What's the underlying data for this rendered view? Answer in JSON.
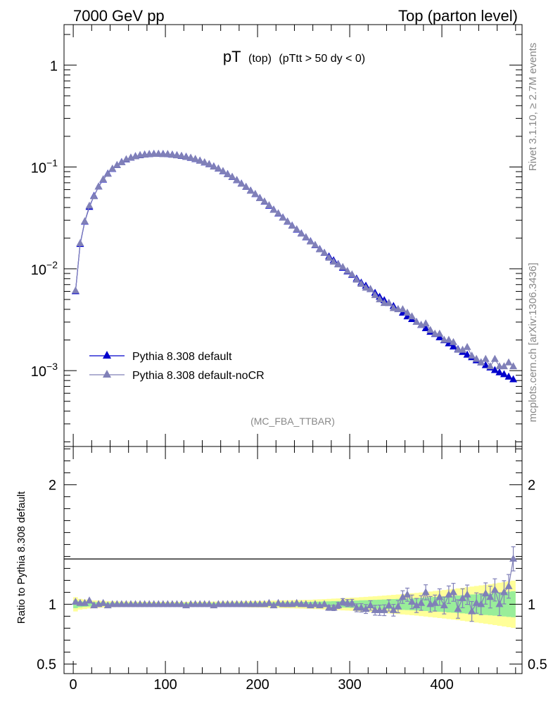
{
  "header": {
    "left": "7000 GeV pp",
    "right": "Top (parton level)"
  },
  "side_labels": {
    "rivet": "Rivet 3.1.10, ≥ 2.7M events",
    "mcplots": "mcplots.cern.ch [arXiv:1306.3436]"
  },
  "colors": {
    "default": "#0000cc",
    "nocr": "#8080b8",
    "band_green": "#99ee99",
    "band_yellow": "#ffff99"
  },
  "chart_data": [
    {
      "type": "line",
      "title_main": "pT",
      "title_sub1": "(top)",
      "title_sub2": "(pTtt > 50 dy < 0)",
      "analysis_tag": "(MC_FBA_TTBAR)",
      "yscale": "log",
      "xlim": [
        -10,
        487
      ],
      "ylim": [
        0.00018,
        2.5
      ],
      "yticks": [
        {
          "base": "1",
          "exp": ""
        },
        {
          "base": "10",
          "exp": "−1"
        },
        {
          "base": "10",
          "exp": "−2"
        },
        {
          "base": "10",
          "exp": "−3"
        }
      ],
      "ytick_values": [
        1,
        0.1,
        0.01,
        0.001
      ],
      "legend_position": "lower-left",
      "x": [
        2.5,
        7.5,
        12.5,
        17.5,
        22.5,
        27.5,
        32.5,
        37.5,
        42.5,
        47.5,
        52.5,
        57.5,
        62.5,
        67.5,
        72.5,
        77.5,
        82.5,
        87.5,
        92.5,
        97.5,
        102.5,
        107.5,
        112.5,
        117.5,
        122.5,
        127.5,
        132.5,
        137.5,
        142.5,
        147.5,
        152.5,
        157.5,
        162.5,
        167.5,
        172.5,
        177.5,
        182.5,
        187.5,
        192.5,
        197.5,
        202.5,
        207.5,
        212.5,
        217.5,
        222.5,
        227.5,
        232.5,
        237.5,
        242.5,
        247.5,
        252.5,
        257.5,
        262.5,
        267.5,
        272.5,
        277.5,
        282.5,
        287.5,
        292.5,
        297.5,
        302.5,
        307.5,
        312.5,
        317.5,
        322.5,
        327.5,
        332.5,
        337.5,
        342.5,
        347.5,
        352.5,
        357.5,
        362.5,
        367.5,
        372.5,
        377.5,
        382.5,
        387.5,
        392.5,
        397.5,
        402.5,
        407.5,
        412.5,
        417.5,
        422.5,
        427.5,
        432.5,
        437.5,
        442.5,
        447.5,
        452.5,
        457.5,
        462.5,
        467.5,
        472.5,
        477.5
      ],
      "series": [
        {
          "name": "Pythia 8.308 default",
          "marker": "filled-triangle",
          "values": [
            0.006,
            0.0175,
            0.029,
            0.0405,
            0.052,
            0.064,
            0.075,
            0.086,
            0.0955,
            0.104,
            0.1115,
            0.118,
            0.123,
            0.127,
            0.13,
            0.132,
            0.1333,
            0.134,
            0.1342,
            0.1338,
            0.133,
            0.1318,
            0.13,
            0.128,
            0.1255,
            0.1225,
            0.119,
            0.115,
            0.1105,
            0.106,
            0.101,
            0.096,
            0.0905,
            0.085,
            0.0795,
            0.074,
            0.0685,
            0.0635,
            0.0585,
            0.054,
            0.0495,
            0.0455,
            0.0415,
            0.038,
            0.0348,
            0.0318,
            0.029,
            0.0265,
            0.0242,
            0.0222,
            0.0203,
            0.0186,
            0.017,
            0.0156,
            0.0143,
            0.0132,
            0.0121,
            0.0111,
            0.0102,
            0.0094,
            0.0087,
            0.008,
            0.0073,
            0.0068,
            0.0063,
            0.0058,
            0.0053,
            0.0049,
            0.0046,
            0.0043,
            0.004,
            0.0037,
            0.0034,
            0.0032,
            0.003,
            0.0028,
            0.0026,
            0.0024,
            0.00228,
            0.00212,
            0.00198,
            0.00185,
            0.00172,
            0.00162,
            0.00152,
            0.00143,
            0.00135,
            0.00126,
            0.0012,
            0.00113,
            0.00107,
            0.00101,
            0.00096,
            0.00092,
            0.00087,
            0.00082
          ],
          "ratio": [
            1,
            1,
            1,
            1,
            1,
            1,
            1,
            1,
            1,
            1,
            1,
            1,
            1,
            1,
            1,
            1,
            1,
            1,
            1,
            1,
            1,
            1,
            1,
            1,
            1,
            1,
            1,
            1,
            1,
            1,
            1,
            1,
            1,
            1,
            1,
            1,
            1,
            1,
            1,
            1,
            1,
            1,
            1,
            1,
            1,
            1,
            1,
            1,
            1,
            1,
            1,
            1,
            1,
            1,
            1,
            1,
            1,
            1,
            1,
            1,
            1,
            1,
            1,
            1,
            1,
            1,
            1,
            1,
            1,
            1,
            1,
            1,
            1,
            1,
            1,
            1,
            1,
            1,
            1,
            1,
            1,
            1,
            1,
            1,
            1,
            1,
            1,
            1,
            1,
            1,
            1,
            1,
            1,
            1,
            1,
            1
          ]
        },
        {
          "name": "Pythia 8.308 default-noCR",
          "marker": "filled-triangle",
          "values": [
            0.0061,
            0.0178,
            0.0292,
            0.0415,
            0.0515,
            0.0642,
            0.0755,
            0.0855,
            0.096,
            0.1043,
            0.111,
            0.1185,
            0.1232,
            0.1268,
            0.1305,
            0.1318,
            0.1335,
            0.1338,
            0.1345,
            0.1332,
            0.1335,
            0.1315,
            0.1298,
            0.1283,
            0.125,
            0.1228,
            0.1195,
            0.1148,
            0.1108,
            0.1062,
            0.1005,
            0.0962,
            0.0908,
            0.0848,
            0.0798,
            0.0742,
            0.0683,
            0.0637,
            0.0583,
            0.0542,
            0.0493,
            0.0457,
            0.042,
            0.0378,
            0.035,
            0.0317,
            0.0291,
            0.0264,
            0.0244,
            0.0221,
            0.0204,
            0.0185,
            0.0171,
            0.0155,
            0.0143,
            0.0128,
            0.0117,
            0.011,
            0.0104,
            0.0095,
            0.0088,
            0.0078,
            0.0071,
            0.0065,
            0.0063,
            0.0055,
            0.005,
            0.0046,
            0.0046,
            0.0041,
            0.004,
            0.004,
            0.0037,
            0.0034,
            0.003,
            0.0028,
            0.0029,
            0.0025,
            0.0023,
            0.0023,
            0.002,
            0.002,
            0.0019,
            0.0016,
            0.0016,
            0.0017,
            0.0014,
            0.0013,
            0.0012,
            0.0013,
            0.0011,
            0.0013,
            0.0011,
            0.0011,
            0.0012,
            0.0011
          ],
          "ratio": [
            1.02,
            1.01,
            1.01,
            1.03,
            0.99,
            1.0,
            1.01,
            0.99,
            1.0,
            1.0,
            1.0,
            1.0,
            1.0,
            1.0,
            1.0,
            1.0,
            1.0,
            1.0,
            1.0,
            1.0,
            1.0,
            1.0,
            1.0,
            1.0,
            0.99,
            1.0,
            1.0,
            1.0,
            1.0,
            1.0,
            0.99,
            1.0,
            1.0,
            1.0,
            1.0,
            1.0,
            1.0,
            1.0,
            1.0,
            1.0,
            1.0,
            1.0,
            1.01,
            0.99,
            1.01,
            1.0,
            1.0,
            1.0,
            1.01,
            1.0,
            1.0,
            0.99,
            1.0,
            0.99,
            1.0,
            0.97,
            0.97,
            0.99,
            1.02,
            1.01,
            1.01,
            0.97,
            0.97,
            0.96,
            0.99,
            0.95,
            0.95,
            0.95,
            0.99,
            0.95,
            0.98,
            1.06,
            1.08,
            1.02,
            0.99,
            1.01,
            1.1,
            1.0,
            1.01,
            1.06,
            0.99,
            1.08,
            1.1,
            0.96,
            1.05,
            1.08,
            0.94,
            1.01,
            1.0,
            1.09,
            1.06,
            1.12,
            1.0,
            1.1,
            1.15,
            1.38
          ]
        }
      ],
      "ratio_panel": {
        "ylabel": "Ratio to Pythia 8.308 default",
        "ylim": [
          0.42,
          2.32
        ],
        "ytick_labels": [
          "2",
          "1",
          "0.5"
        ],
        "ytick_values": [
          2,
          1,
          0.5
        ],
        "xtick_labels": [
          "0",
          "100",
          "200",
          "300",
          "400"
        ],
        "xtick_values": [
          0,
          100,
          200,
          300,
          400
        ],
        "band_yellow_halfwidth": [
          0.06,
          0.045,
          0.04,
          0.035,
          0.032,
          0.03,
          0.028,
          0.026,
          0.025,
          0.024,
          0.023,
          0.022,
          0.022,
          0.021,
          0.021,
          0.02,
          0.02,
          0.02,
          0.02,
          0.02,
          0.02,
          0.02,
          0.02,
          0.02,
          0.02,
          0.02,
          0.02,
          0.021,
          0.021,
          0.021,
          0.022,
          0.022,
          0.022,
          0.023,
          0.023,
          0.024,
          0.024,
          0.025,
          0.026,
          0.026,
          0.027,
          0.028,
          0.029,
          0.03,
          0.031,
          0.032,
          0.033,
          0.034,
          0.035,
          0.036,
          0.037,
          0.038,
          0.04,
          0.041,
          0.043,
          0.045,
          0.047,
          0.049,
          0.051,
          0.053,
          0.055,
          0.057,
          0.06,
          0.062,
          0.065,
          0.067,
          0.07,
          0.073,
          0.076,
          0.079,
          0.082,
          0.085,
          0.088,
          0.092,
          0.095,
          0.099,
          0.103,
          0.107,
          0.111,
          0.115,
          0.119,
          0.124,
          0.128,
          0.133,
          0.138,
          0.143,
          0.148,
          0.153,
          0.158,
          0.163,
          0.168,
          0.174,
          0.18,
          0.186,
          0.192,
          0.198
        ]
      }
    }
  ]
}
